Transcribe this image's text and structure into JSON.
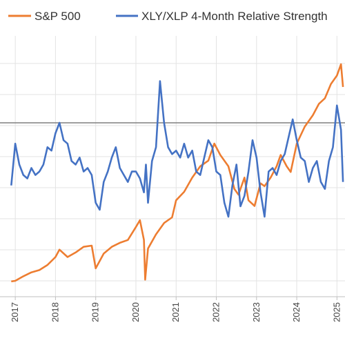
{
  "chart_data": {
    "type": "line",
    "title": "",
    "xlabel": "",
    "ylabel": "",
    "legend_position": "top",
    "grid": true,
    "x_ticks": [
      "2017",
      "2018",
      "2019",
      "2020",
      "2021",
      "2022",
      "2023",
      "2024",
      "2025"
    ],
    "reference_line": {
      "y": 1.1
    },
    "series": [
      {
        "name": "S&P 500",
        "color": "#ED7D31",
        "axis": "right",
        "x": [
          2016.9,
          2017.0,
          2017.2,
          2017.4,
          2017.6,
          2017.8,
          2018.0,
          2018.1,
          2018.3,
          2018.5,
          2018.7,
          2018.9,
          2019.0,
          2019.2,
          2019.4,
          2019.6,
          2019.8,
          2020.0,
          2020.1,
          2020.2,
          2020.23,
          2020.3,
          2020.5,
          2020.7,
          2020.9,
          2021.0,
          2021.2,
          2021.4,
          2021.6,
          2021.8,
          2021.95,
          2022.1,
          2022.3,
          2022.45,
          2022.55,
          2022.7,
          2022.8,
          2022.95,
          2023.1,
          2023.2,
          2023.35,
          2023.5,
          2023.6,
          2023.75,
          2023.85,
          2024.0,
          2024.2,
          2024.4,
          2024.55,
          2024.7,
          2024.85,
          2025.0,
          2025.1,
          2025.15
        ],
        "values": [
          2270,
          2280,
          2360,
          2430,
          2470,
          2560,
          2700,
          2830,
          2700,
          2780,
          2880,
          2900,
          2500,
          2760,
          2880,
          2950,
          3000,
          3230,
          3350,
          3000,
          2300,
          2850,
          3100,
          3300,
          3400,
          3700,
          3850,
          4100,
          4300,
          4400,
          4700,
          4500,
          4300,
          3900,
          3800,
          4100,
          3700,
          3600,
          4000,
          3950,
          4100,
          4300,
          4500,
          4300,
          4200,
          4700,
          5000,
          5200,
          5400,
          5500,
          5750,
          5900,
          6100,
          5700
        ]
      },
      {
        "name": "XLY/XLP 4-Month Relative Strength",
        "color": "#4472C4",
        "axis": "left",
        "x": [
          2016.9,
          2017.0,
          2017.1,
          2017.2,
          2017.3,
          2017.4,
          2017.5,
          2017.6,
          2017.7,
          2017.8,
          2017.9,
          2018.0,
          2018.1,
          2018.2,
          2018.3,
          2018.4,
          2018.5,
          2018.6,
          2018.7,
          2018.8,
          2018.9,
          2019.0,
          2019.1,
          2019.2,
          2019.3,
          2019.4,
          2019.5,
          2019.6,
          2019.7,
          2019.8,
          2019.9,
          2020.0,
          2020.1,
          2020.2,
          2020.25,
          2020.3,
          2020.4,
          2020.5,
          2020.6,
          2020.7,
          2020.8,
          2020.9,
          2021.0,
          2021.1,
          2021.2,
          2021.3,
          2021.4,
          2021.5,
          2021.6,
          2021.7,
          2021.8,
          2021.9,
          2022.0,
          2022.1,
          2022.2,
          2022.3,
          2022.4,
          2022.5,
          2022.6,
          2022.7,
          2022.8,
          2022.9,
          2023.0,
          2023.1,
          2023.2,
          2023.3,
          2023.4,
          2023.5,
          2023.6,
          2023.7,
          2023.8,
          2023.9,
          2024.0,
          2024.1,
          2024.2,
          2024.3,
          2024.4,
          2024.5,
          2024.6,
          2024.7,
          2024.8,
          2024.9,
          2025.0,
          2025.1,
          2025.15
        ],
        "values": [
          0.92,
          1.04,
          0.98,
          0.95,
          0.94,
          0.97,
          0.95,
          0.96,
          0.98,
          1.03,
          1.02,
          1.07,
          1.1,
          1.05,
          1.04,
          0.99,
          0.98,
          1.0,
          0.96,
          0.97,
          0.95,
          0.87,
          0.85,
          0.93,
          0.96,
          1.0,
          1.03,
          0.97,
          0.95,
          0.93,
          0.96,
          0.96,
          0.94,
          0.9,
          0.98,
          0.87,
          0.99,
          1.03,
          1.22,
          1.1,
          1.03,
          1.01,
          1.02,
          1.0,
          1.04,
          1.0,
          1.02,
          0.96,
          0.95,
          1.0,
          1.05,
          1.03,
          0.96,
          0.95,
          0.87,
          0.83,
          0.92,
          0.98,
          0.86,
          0.89,
          0.96,
          1.05,
          1.0,
          0.9,
          0.83,
          0.96,
          0.97,
          0.95,
          0.99,
          1.01,
          1.06,
          1.11,
          1.05,
          1.0,
          0.99,
          0.93,
          0.97,
          0.99,
          0.93,
          0.91,
          0.99,
          1.03,
          1.15,
          1.08,
          0.93
        ]
      }
    ]
  }
}
